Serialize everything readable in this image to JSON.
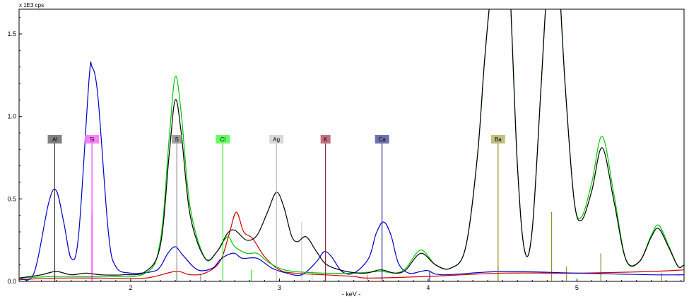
{
  "chart_data": {
    "type": "line",
    "units_label": "x 1E3 cps",
    "xlabel": "- keV -",
    "ylabel": "",
    "xlim": [
      1.25,
      5.72
    ],
    "ylim": [
      0,
      1.65
    ],
    "x_ticks": [
      2,
      3,
      4,
      5
    ],
    "y_ticks": [
      0.0,
      0.5,
      1.0,
      1.5
    ],
    "x_tick_labels": [
      "2",
      "3",
      "4",
      "5"
    ],
    "y_tick_labels": [
      "0.0",
      "0.5",
      "1.0",
      "1.5"
    ],
    "grid": false,
    "legend": "none",
    "series": [
      {
        "color": "#0000c8",
        "values": [
          [
            1.25,
            0.02
          ],
          [
            1.35,
            0.05
          ],
          [
            1.45,
            0.48
          ],
          [
            1.5,
            0.55
          ],
          [
            1.55,
            0.36
          ],
          [
            1.6,
            0.14
          ],
          [
            1.65,
            0.28
          ],
          [
            1.72,
            1.22
          ],
          [
            1.74,
            1.3
          ],
          [
            1.78,
            1.12
          ],
          [
            1.85,
            0.3
          ],
          [
            1.9,
            0.09
          ],
          [
            2.0,
            0.05
          ],
          [
            2.15,
            0.06
          ],
          [
            2.2,
            0.09
          ],
          [
            2.25,
            0.17
          ],
          [
            2.3,
            0.21
          ],
          [
            2.35,
            0.16
          ],
          [
            2.45,
            0.07
          ],
          [
            2.55,
            0.08
          ],
          [
            2.6,
            0.13
          ],
          [
            2.65,
            0.16
          ],
          [
            2.7,
            0.17
          ],
          [
            2.75,
            0.14
          ],
          [
            2.85,
            0.14
          ],
          [
            2.95,
            0.08
          ],
          [
            3.05,
            0.05
          ],
          [
            3.15,
            0.04
          ],
          [
            3.25,
            0.12
          ],
          [
            3.3,
            0.18
          ],
          [
            3.35,
            0.15
          ],
          [
            3.42,
            0.06
          ],
          [
            3.5,
            0.05
          ],
          [
            3.6,
            0.14
          ],
          [
            3.65,
            0.29
          ],
          [
            3.7,
            0.36
          ],
          [
            3.75,
            0.28
          ],
          [
            3.8,
            0.11
          ],
          [
            3.87,
            0.05
          ],
          [
            3.95,
            0.06
          ],
          [
            4.0,
            0.065
          ],
          [
            4.1,
            0.04
          ],
          [
            4.5,
            0.06
          ],
          [
            5.0,
            0.05
          ],
          [
            5.5,
            0.04
          ],
          [
            5.72,
            0.04
          ]
        ]
      },
      {
        "color": "#000000",
        "values": [
          [
            1.25,
            0.02
          ],
          [
            1.4,
            0.04
          ],
          [
            1.5,
            0.06
          ],
          [
            1.6,
            0.04
          ],
          [
            1.7,
            0.05
          ],
          [
            1.8,
            0.04
          ],
          [
            1.95,
            0.04
          ],
          [
            2.1,
            0.06
          ],
          [
            2.2,
            0.22
          ],
          [
            2.26,
            0.78
          ],
          [
            2.3,
            1.1
          ],
          [
            2.34,
            0.9
          ],
          [
            2.4,
            0.4
          ],
          [
            2.5,
            0.14
          ],
          [
            2.58,
            0.18
          ],
          [
            2.65,
            0.29
          ],
          [
            2.7,
            0.31
          ],
          [
            2.78,
            0.25
          ],
          [
            2.85,
            0.28
          ],
          [
            2.92,
            0.42
          ],
          [
            2.98,
            0.54
          ],
          [
            3.03,
            0.45
          ],
          [
            3.08,
            0.28
          ],
          [
            3.12,
            0.24
          ],
          [
            3.18,
            0.27
          ],
          [
            3.25,
            0.18
          ],
          [
            3.32,
            0.1
          ],
          [
            3.45,
            0.06
          ],
          [
            3.58,
            0.05
          ],
          [
            3.68,
            0.07
          ],
          [
            3.78,
            0.05
          ],
          [
            3.85,
            0.07
          ],
          [
            3.95,
            0.17
          ],
          [
            4.05,
            0.1
          ],
          [
            4.15,
            0.08
          ],
          [
            4.25,
            0.2
          ],
          [
            4.33,
            0.75
          ],
          [
            4.38,
            1.35
          ],
          [
            4.43,
            1.8
          ],
          [
            4.52,
            2.2
          ],
          [
            4.6,
            0.7
          ],
          [
            4.65,
            0.18
          ],
          [
            4.7,
            0.32
          ],
          [
            4.76,
            1.2
          ],
          [
            4.8,
            1.8
          ],
          [
            4.85,
            2.2
          ],
          [
            4.92,
            1.2
          ],
          [
            4.98,
            0.5
          ],
          [
            5.03,
            0.37
          ],
          [
            5.1,
            0.55
          ],
          [
            5.17,
            0.81
          ],
          [
            5.25,
            0.48
          ],
          [
            5.33,
            0.13
          ],
          [
            5.42,
            0.12
          ],
          [
            5.5,
            0.27
          ],
          [
            5.55,
            0.32
          ],
          [
            5.62,
            0.2
          ],
          [
            5.68,
            0.09
          ],
          [
            5.72,
            0.1
          ]
        ]
      },
      {
        "color": "#00c800",
        "values": [
          [
            1.25,
            0.02
          ],
          [
            1.5,
            0.03
          ],
          [
            1.8,
            0.03
          ],
          [
            2.1,
            0.05
          ],
          [
            2.2,
            0.25
          ],
          [
            2.26,
            0.88
          ],
          [
            2.3,
            1.24
          ],
          [
            2.34,
            1.02
          ],
          [
            2.4,
            0.45
          ],
          [
            2.5,
            0.14
          ],
          [
            2.58,
            0.18
          ],
          [
            2.65,
            0.27
          ],
          [
            2.7,
            0.21
          ],
          [
            2.78,
            0.17
          ],
          [
            2.85,
            0.17
          ],
          [
            2.92,
            0.12
          ],
          [
            3.0,
            0.08
          ],
          [
            3.1,
            0.06
          ],
          [
            3.3,
            0.05
          ],
          [
            3.5,
            0.05
          ],
          [
            3.68,
            0.06
          ],
          [
            3.78,
            0.05
          ],
          [
            3.85,
            0.08
          ],
          [
            3.95,
            0.19
          ],
          [
            4.05,
            0.1
          ],
          [
            4.15,
            0.08
          ],
          [
            4.25,
            0.2
          ],
          [
            4.33,
            0.75
          ],
          [
            4.38,
            1.35
          ],
          [
            4.43,
            1.8
          ],
          [
            4.52,
            2.2
          ],
          [
            4.6,
            0.7
          ],
          [
            4.65,
            0.18
          ],
          [
            4.7,
            0.32
          ],
          [
            4.76,
            1.2
          ],
          [
            4.8,
            1.8
          ],
          [
            4.85,
            2.2
          ],
          [
            4.92,
            1.2
          ],
          [
            4.98,
            0.5
          ],
          [
            5.03,
            0.39
          ],
          [
            5.1,
            0.6
          ],
          [
            5.17,
            0.88
          ],
          [
            5.25,
            0.52
          ],
          [
            5.33,
            0.13
          ],
          [
            5.42,
            0.12
          ],
          [
            5.5,
            0.28
          ],
          [
            5.55,
            0.34
          ],
          [
            5.62,
            0.21
          ],
          [
            5.68,
            0.09
          ],
          [
            5.72,
            0.1
          ]
        ]
      },
      {
        "color": "#d00000",
        "values": [
          [
            1.25,
            0.01
          ],
          [
            1.5,
            0.02
          ],
          [
            1.8,
            0.02
          ],
          [
            2.1,
            0.02
          ],
          [
            2.3,
            0.06
          ],
          [
            2.4,
            0.04
          ],
          [
            2.5,
            0.05
          ],
          [
            2.6,
            0.12
          ],
          [
            2.66,
            0.28
          ],
          [
            2.71,
            0.42
          ],
          [
            2.76,
            0.3
          ],
          [
            2.82,
            0.26
          ],
          [
            2.9,
            0.15
          ],
          [
            3.0,
            0.07
          ],
          [
            3.1,
            0.05
          ],
          [
            3.3,
            0.04
          ],
          [
            3.5,
            0.03
          ],
          [
            3.6,
            0.02
          ],
          [
            4.0,
            0.03
          ],
          [
            4.5,
            0.05
          ],
          [
            5.0,
            0.05
          ],
          [
            5.5,
            0.06
          ],
          [
            5.72,
            0.07
          ]
        ]
      }
    ],
    "element_markers": [
      {
        "label": "Al",
        "x": 1.49,
        "color": "#202020",
        "box": "#808080",
        "text_color": "#000000"
      },
      {
        "label": "Si",
        "x": 1.74,
        "color": "#ff00ff",
        "box": "#ff80ff",
        "text_color": "#000000"
      },
      {
        "label": "S",
        "x": 2.31,
        "color": "#808080",
        "box": "#a0a0a0",
        "text_color": "#000000"
      },
      {
        "label": "Cl",
        "x": 2.62,
        "color": "#00dd00",
        "box": "#66ff66",
        "text_color": "#000000"
      },
      {
        "label": "Ag",
        "x": 2.98,
        "color": "#b0b0b0",
        "box": "#d8d8d8",
        "text_color": "#000000"
      },
      {
        "label": "K",
        "x": 3.31,
        "color": "#800020",
        "box": "#c07080",
        "text_color": "#000000"
      },
      {
        "label": "Ca",
        "x": 3.69,
        "color": "#000080",
        "box": "#7070b0",
        "text_color": "#000000"
      },
      {
        "label": "Ba",
        "x": 4.47,
        "color": "#808000",
        "box": "#c0c080",
        "text_color": "#000000"
      }
    ],
    "minor_lines": [
      {
        "x": 1.74,
        "y": 0.41,
        "color": "#ff00ff"
      },
      {
        "x": 2.31,
        "y": 0.06,
        "color": "#808080"
      },
      {
        "x": 2.47,
        "y": 0.04,
        "color": "#808080"
      },
      {
        "x": 2.81,
        "y": 0.07,
        "color": "#00dd00"
      },
      {
        "x": 3.15,
        "y": 0.36,
        "color": "#c0c0c0"
      },
      {
        "x": 3.22,
        "y": 0.07,
        "color": "#c0c0c0"
      },
      {
        "x": 3.59,
        "y": 0.04,
        "color": "#c07080"
      },
      {
        "x": 4.01,
        "y": 0.06,
        "color": "#000080"
      },
      {
        "x": 4.47,
        "y": 0.09,
        "color": "#808000"
      },
      {
        "x": 4.83,
        "y": 0.42,
        "color": "#808000"
      },
      {
        "x": 4.93,
        "y": 0.09,
        "color": "#808000"
      },
      {
        "x": 5.16,
        "y": 0.17,
        "color": "#808000"
      },
      {
        "x": 5.57,
        "y": 0.05,
        "color": "#808000"
      }
    ]
  }
}
